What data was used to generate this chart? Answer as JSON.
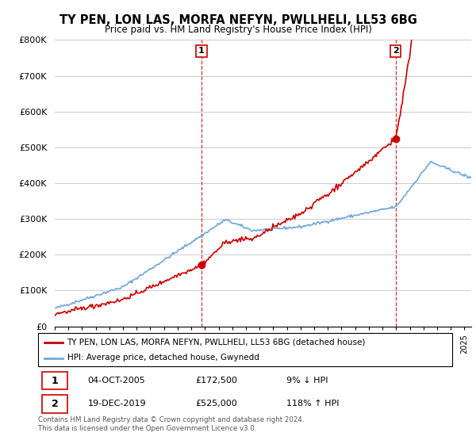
{
  "title": "TY PEN, LON LAS, MORFA NEFYN, PWLLHELI, LL53 6BG",
  "subtitle": "Price paid vs. HM Land Registry's House Price Index (HPI)",
  "legend_line1": "TY PEN, LON LAS, MORFA NEFYN, PWLLHELI, LL53 6BG (detached house)",
  "legend_line2": "HPI: Average price, detached house, Gwynedd",
  "annotation1_date": "04-OCT-2005",
  "annotation1_price": "£172,500",
  "annotation1_hpi": "9% ↓ HPI",
  "annotation2_date": "19-DEC-2019",
  "annotation2_price": "£525,000",
  "annotation2_hpi": "118% ↑ HPI",
  "footer": "Contains HM Land Registry data © Crown copyright and database right 2024.\nThis data is licensed under the Open Government Licence v3.0.",
  "sale1_x": 2005.75,
  "sale1_y": 172500,
  "sale2_x": 2019.96,
  "sale2_y": 525000,
  "hpi_color": "#6fa8dc",
  "price_color": "#cc0000",
  "dashed_line_color": "#cc0000",
  "grid_color": "#cccccc",
  "ylim": [
    0,
    800000
  ],
  "xlim_start": 1995,
  "xlim_end": 2025.5,
  "yticks": [
    0,
    100000,
    200000,
    300000,
    400000,
    500000,
    600000,
    700000,
    800000
  ],
  "ytick_labels": [
    "£0",
    "£100K",
    "£200K",
    "£300K",
    "£400K",
    "£500K",
    "£600K",
    "£700K",
    "£800K"
  ]
}
